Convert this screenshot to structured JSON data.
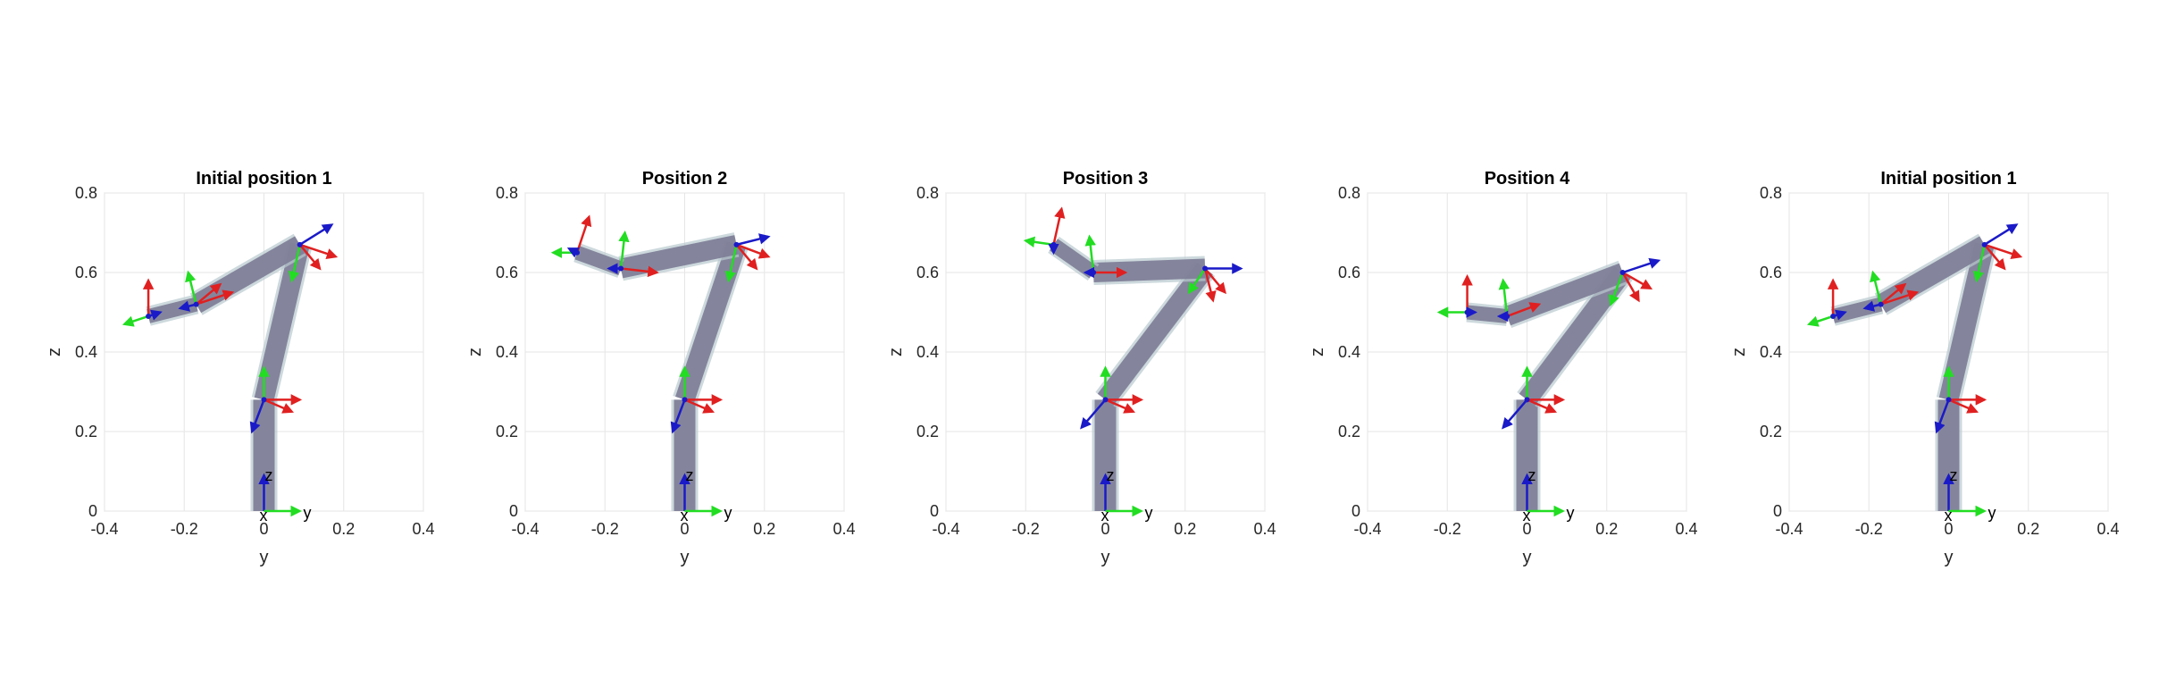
{
  "figure": {
    "panels": [
      {
        "title": "Initial position 1",
        "joints": [
          [
            0,
            0
          ],
          [
            0,
            0.28
          ],
          [
            0.09,
            0.67
          ],
          [
            -0.17,
            0.52
          ],
          [
            -0.29,
            0.49
          ]
        ],
        "frames": [
          {
            "at": [
              0,
              0.28
            ],
            "green": [
              0,
              0.08
            ],
            "red": [
              0.09,
              0
            ],
            "red2": [
              0.07,
              -0.03
            ],
            "blue": [
              -0.03,
              -0.08
            ]
          },
          {
            "at": [
              0.09,
              0.67
            ],
            "green": [
              -0.02,
              -0.09
            ],
            "red": [
              0.09,
              -0.03
            ],
            "red2": [
              0.05,
              -0.06
            ],
            "blue": [
              0.08,
              0.05
            ]
          },
          {
            "at": [
              -0.17,
              0.52
            ],
            "green": [
              -0.02,
              0.08
            ],
            "red": [
              0.09,
              0.03
            ],
            "red2": [
              0.06,
              0.05
            ],
            "blue": [
              -0.04,
              -0.01
            ]
          },
          {
            "at": [
              -0.29,
              0.49
            ],
            "green": [
              -0.06,
              -0.02
            ],
            "red": [
              0,
              0.09
            ],
            "blue": [
              0.03,
              0.01
            ]
          }
        ]
      },
      {
        "title": "Position 2",
        "joints": [
          [
            0,
            0
          ],
          [
            0,
            0.28
          ],
          [
            0.13,
            0.67
          ],
          [
            -0.16,
            0.61
          ],
          [
            -0.27,
            0.65
          ]
        ],
        "frames": [
          {
            "at": [
              0,
              0.28
            ],
            "green": [
              0,
              0.08
            ],
            "red": [
              0.09,
              0
            ],
            "red2": [
              0.07,
              -0.03
            ],
            "blue": [
              -0.03,
              -0.08
            ]
          },
          {
            "at": [
              0.13,
              0.67
            ],
            "green": [
              -0.02,
              -0.09
            ],
            "red": [
              0.08,
              -0.03
            ],
            "red2": [
              0.05,
              -0.06
            ],
            "blue": [
              0.08,
              0.02
            ]
          },
          {
            "at": [
              -0.16,
              0.61
            ],
            "green": [
              0.01,
              0.09
            ],
            "red": [
              0.09,
              -0.01
            ],
            "blue": [
              -0.03,
              0
            ]
          },
          {
            "at": [
              -0.27,
              0.65
            ],
            "green": [
              -0.06,
              0
            ],
            "red": [
              0.03,
              0.09
            ],
            "blue": [
              -0.02,
              0.01
            ]
          }
        ]
      },
      {
        "title": "Position 3",
        "joints": [
          [
            0,
            0
          ],
          [
            0,
            0.28
          ],
          [
            0.25,
            0.61
          ],
          [
            -0.03,
            0.6
          ],
          [
            -0.13,
            0.67
          ]
        ],
        "frames": [
          {
            "at": [
              0,
              0.28
            ],
            "green": [
              0,
              0.08
            ],
            "red": [
              0.09,
              0
            ],
            "red2": [
              0.07,
              -0.03
            ],
            "blue": [
              -0.06,
              -0.07
            ]
          },
          {
            "at": [
              0.25,
              0.61
            ],
            "green": [
              -0.04,
              -0.06
            ],
            "red": [
              0.05,
              -0.06
            ],
            "red2": [
              0.02,
              -0.08
            ],
            "blue": [
              0.09,
              0
            ]
          },
          {
            "at": [
              -0.03,
              0.6
            ],
            "green": [
              -0.01,
              0.09
            ],
            "red": [
              0.08,
              0
            ],
            "blue": [
              -0.02,
              0
            ]
          },
          {
            "at": [
              -0.13,
              0.67
            ],
            "green": [
              -0.07,
              0.01
            ],
            "red": [
              0.02,
              0.09
            ],
            "blue": [
              0,
              -0.02
            ]
          }
        ]
      },
      {
        "title": "Position 4",
        "joints": [
          [
            0,
            0
          ],
          [
            0,
            0.28
          ],
          [
            0.24,
            0.6
          ],
          [
            -0.05,
            0.49
          ],
          [
            -0.15,
            0.5
          ]
        ],
        "frames": [
          {
            "at": [
              0,
              0.28
            ],
            "green": [
              0,
              0.08
            ],
            "red": [
              0.09,
              0
            ],
            "red2": [
              0.07,
              -0.03
            ],
            "blue": [
              -0.06,
              -0.07
            ]
          },
          {
            "at": [
              0.24,
              0.6
            ],
            "green": [
              -0.03,
              -0.08
            ],
            "red": [
              0.07,
              -0.04
            ],
            "red2": [
              0.04,
              -0.07
            ],
            "blue": [
              0.09,
              0.03
            ]
          },
          {
            "at": [
              -0.05,
              0.49
            ],
            "green": [
              -0.01,
              0.09
            ],
            "red": [
              0.08,
              0.03
            ],
            "blue": [
              -0.02,
              0
            ]
          },
          {
            "at": [
              -0.15,
              0.5
            ],
            "green": [
              -0.07,
              0
            ],
            "red": [
              0,
              0.09
            ],
            "blue": [
              0.02,
              0
            ]
          }
        ]
      },
      {
        "title": "Initial position 1",
        "joints": [
          [
            0,
            0
          ],
          [
            0,
            0.28
          ],
          [
            0.09,
            0.67
          ],
          [
            -0.17,
            0.52
          ],
          [
            -0.29,
            0.49
          ]
        ],
        "frames": [
          {
            "at": [
              0,
              0.28
            ],
            "green": [
              0,
              0.08
            ],
            "red": [
              0.09,
              0
            ],
            "red2": [
              0.07,
              -0.03
            ],
            "blue": [
              -0.03,
              -0.08
            ]
          },
          {
            "at": [
              0.09,
              0.67
            ],
            "green": [
              -0.02,
              -0.09
            ],
            "red": [
              0.09,
              -0.03
            ],
            "red2": [
              0.05,
              -0.06
            ],
            "blue": [
              0.08,
              0.05
            ]
          },
          {
            "at": [
              -0.17,
              0.52
            ],
            "green": [
              -0.02,
              0.08
            ],
            "red": [
              0.09,
              0.03
            ],
            "red2": [
              0.06,
              0.05
            ],
            "blue": [
              -0.04,
              -0.01
            ]
          },
          {
            "at": [
              -0.29,
              0.49
            ],
            "green": [
              -0.06,
              -0.02
            ],
            "red": [
              0,
              0.09
            ],
            "blue": [
              0.03,
              0.01
            ]
          }
        ]
      }
    ],
    "axes": {
      "xlabel": "y",
      "ylabel": "z",
      "xlim": [
        -0.4,
        0.4
      ],
      "ylim": [
        0,
        0.8
      ],
      "xticks": [
        "-0.4",
        "-0.2",
        "0",
        "0.2",
        "0.4"
      ],
      "yticks": [
        "0",
        "0.2",
        "0.4",
        "0.6",
        "0.8"
      ],
      "grid": true
    },
    "base_frame_labels": {
      "x": "x",
      "y": "y",
      "z": "z"
    },
    "colors": {
      "link": "#7d7d96",
      "link_edge": "#b9c9cf",
      "axis_x": "#e02020",
      "axis_y": "#22dd22",
      "axis_z": "#1a1ac8",
      "grid": "#e6e6e6",
      "box": "#d0d0d0"
    }
  }
}
